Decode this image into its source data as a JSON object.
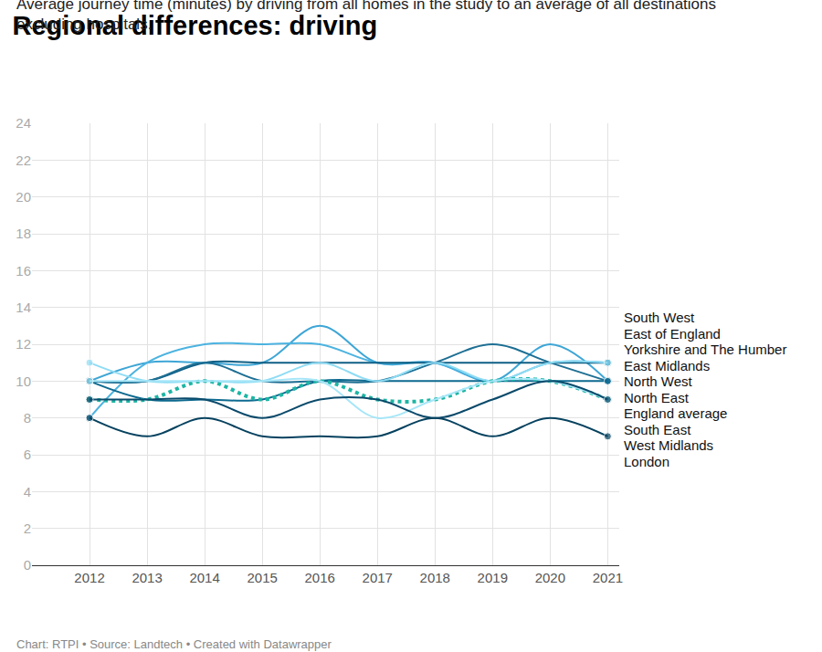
{
  "chart_data": {
    "type": "line",
    "title": "Regional differences: driving",
    "subtitle": "Average journey time (minutes) by driving from all homes in the study to an average of all destinations excluding hospitals.",
    "source": "Chart: RTPI • Source: Landtech • Created with Datawrapper",
    "x": [
      2012,
      2013,
      2014,
      2015,
      2016,
      2017,
      2018,
      2019,
      2020,
      2021
    ],
    "xlim": [
      2011,
      2021.2
    ],
    "xticks": [
      2012,
      2013,
      2014,
      2015,
      2016,
      2017,
      2018,
      2019,
      2020,
      2021
    ],
    "ylim": [
      0,
      24
    ],
    "yticks": [
      0,
      2,
      4,
      6,
      8,
      10,
      12,
      14,
      16,
      18,
      20,
      22,
      24
    ],
    "grid": true,
    "line_style": "spline",
    "series": [
      {
        "name": "South West",
        "color": "#3ea6d6",
        "values": [
          10,
          11,
          11,
          11,
          13,
          11,
          11,
          10,
          12,
          10
        ]
      },
      {
        "name": "East of England",
        "color": "#4cb3e0",
        "values": [
          8,
          11,
          12,
          12,
          12,
          11,
          11,
          10,
          11,
          11
        ]
      },
      {
        "name": "Yorkshire and The Humber",
        "color": "#0f5f85",
        "values": [
          10,
          10,
          11,
          11,
          11,
          11,
          11,
          11,
          11,
          11
        ]
      },
      {
        "name": "East Midlands",
        "color": "#1d6f94",
        "values": [
          10,
          10,
          11,
          10,
          10,
          10,
          11,
          12,
          11,
          10
        ]
      },
      {
        "name": "North West",
        "color": "#0d6a90",
        "values": [
          10,
          9,
          9,
          9,
          10,
          10,
          10,
          10,
          10,
          10
        ]
      },
      {
        "name": "North East",
        "color": "#8fdcf4",
        "values": [
          11,
          10,
          10,
          10,
          11,
          10,
          11,
          10,
          11,
          11
        ]
      },
      {
        "name": "England average",
        "color": "#1db5a4",
        "line_style": "dotted",
        "values": [
          9,
          9,
          10,
          9,
          10,
          9,
          9,
          10,
          10,
          9
        ]
      },
      {
        "name": "South East",
        "color": "#a6e6f8",
        "values": [
          10,
          10,
          10,
          10,
          10,
          8,
          9,
          10,
          10,
          9
        ]
      },
      {
        "name": "West Midlands",
        "color": "#0a4a6b",
        "values": [
          9,
          9,
          9,
          8,
          9,
          9,
          8,
          9,
          10,
          9
        ]
      },
      {
        "name": "London",
        "color": "#06425f",
        "values": [
          8,
          7,
          8,
          7,
          7,
          7,
          8,
          7,
          8,
          7
        ]
      }
    ]
  }
}
